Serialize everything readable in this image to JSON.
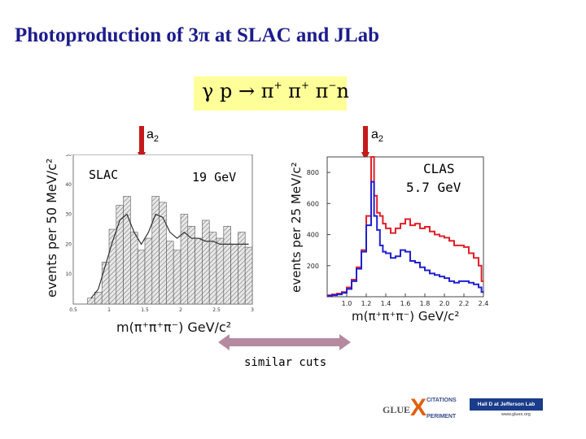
{
  "slide": {
    "title": "Photoproduction of 3π at SLAC and JLab",
    "reaction": {
      "base": "γ p → π",
      "sup1": "+",
      "mid": " π",
      "sup2": "+",
      "mid2": " π",
      "sup3": "−",
      "end": "n"
    },
    "a2_left": {
      "main": "a",
      "sub": "2"
    },
    "a2_right": {
      "main": "a",
      "sub": "2"
    },
    "slac_label": "SLAC",
    "energy_left": "19 GeV",
    "clas_label": "CLAS",
    "energy_right": "5.7 GeV",
    "ylabel_left": "events per 50 MeV/c²",
    "ylabel_right": "events per 25 MeV/c²",
    "xlabel_left": "m(π⁺π⁺π⁻)  GeV/c²",
    "xlabel_right": "m(π⁺π⁺π⁻)  GeV/c²",
    "similar_cuts": "similar cuts",
    "logo_glue": "GLUE",
    "logo_x": "X",
    "logo_citations": "CITATIONS",
    "logo_periment": "PERIMENT",
    "logo_hall": "Hall D at Jefferson Lab",
    "logo_url": "www.gluex.org"
  },
  "colors": {
    "title": "#1c1c8c",
    "reaction_bg": "#ffff99",
    "arrow": "#c41a1a",
    "cuts_arrow": "#b58aa0",
    "clas_red": "#e0202a",
    "clas_blue": "#2020d0"
  },
  "chart_data": [
    {
      "type": "bar",
      "ylabel": "events per 50 MeV/c²",
      "xlabel": "m(π⁺π⁺π⁻)  GeV/c²",
      "xlim": [
        0.5,
        3.0
      ],
      "ylim": [
        0,
        50
      ],
      "xticks": [
        "0.5",
        "1",
        "1.5",
        "2",
        "2.5",
        "3"
      ],
      "yticks": [
        "10",
        "20",
        "30",
        "40",
        "50"
      ],
      "x": [
        0.75,
        0.85,
        0.95,
        1.05,
        1.15,
        1.25,
        1.35,
        1.45,
        1.55,
        1.65,
        1.75,
        1.85,
        1.95,
        2.05,
        2.15,
        2.25,
        2.35,
        2.45,
        2.55,
        2.65,
        2.75,
        2.85,
        2.95
      ],
      "values": [
        2,
        4,
        14,
        25,
        33,
        36,
        24,
        18,
        22,
        36,
        34,
        21,
        18,
        30,
        26,
        22,
        28,
        24,
        22,
        26,
        20,
        24,
        19
      ],
      "fit": [
        2,
        5,
        13,
        21,
        28,
        30,
        24,
        20,
        24,
        30,
        29,
        24,
        22,
        24,
        22,
        22,
        21,
        21,
        20,
        20,
        20,
        20,
        20
      ],
      "annotations": [
        "SLAC",
        "19 GeV"
      ]
    },
    {
      "type": "line",
      "ylabel": "events per 25 MeV/c²",
      "xlabel": "m(π⁺π⁺π⁻)  GeV/c²",
      "xlim": [
        0.8,
        2.4
      ],
      "ylim": [
        0,
        900
      ],
      "xticks": [
        "1.0",
        "1.2",
        "1.4",
        "1.6",
        "1.8",
        "2.0",
        "2.2",
        "2.4"
      ],
      "yticks": [
        "200",
        "400",
        "600",
        "800"
      ],
      "x": [
        0.8,
        0.85,
        0.9,
        0.95,
        1.0,
        1.05,
        1.1,
        1.15,
        1.2,
        1.25,
        1.28,
        1.31,
        1.34,
        1.37,
        1.4,
        1.45,
        1.5,
        1.55,
        1.6,
        1.65,
        1.7,
        1.75,
        1.8,
        1.85,
        1.9,
        1.95,
        2.0,
        2.05,
        2.1,
        2.15,
        2.2,
        2.25,
        2.3,
        2.35,
        2.38
      ],
      "series": [
        {
          "values": [
            10,
            15,
            20,
            30,
            60,
            110,
            190,
            300,
            520,
            900,
            650,
            540,
            520,
            470,
            440,
            410,
            440,
            470,
            500,
            460,
            470,
            440,
            450,
            420,
            400,
            390,
            380,
            360,
            330,
            330,
            320,
            280,
            250,
            200,
            100
          ]
        },
        {
          "values": [
            5,
            10,
            15,
            25,
            50,
            100,
            180,
            290,
            460,
            740,
            520,
            430,
            330,
            290,
            280,
            250,
            260,
            300,
            290,
            230,
            220,
            190,
            170,
            150,
            140,
            130,
            120,
            100,
            90,
            100,
            100,
            90,
            80,
            60,
            30
          ]
        }
      ],
      "annotations": [
        "CLAS",
        "5.7 GeV"
      ]
    }
  ]
}
